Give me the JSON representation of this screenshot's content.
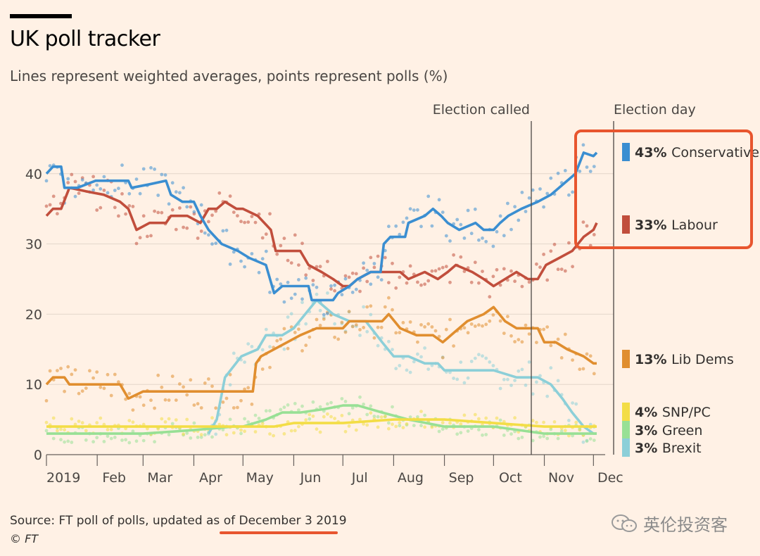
{
  "header": {
    "title": "UK poll tracker",
    "subtitle": "Lines represent weighted averages, points represent polls (%)"
  },
  "footer": {
    "source_prefix": "Source: FT poll of polls, updated as of ",
    "source_date": "December 3 2019",
    "copyright": "© FT",
    "watermark": "英伦投资客"
  },
  "colors": {
    "background": "#fff1e5",
    "conservative": "#3a8ed1",
    "labour": "#c14e3c",
    "libdems": "#e08e2f",
    "snp": "#f3dd46",
    "green": "#98e095",
    "brexit": "#8ccfd8",
    "highlight": "#e8552e"
  },
  "chart_data": {
    "type": "line",
    "title": "UK poll tracker",
    "x_type": "date",
    "x_range": [
      "2019-01-01",
      "2019-12-03"
    ],
    "ylim": [
      0,
      45
    ],
    "y_ticks": [
      0,
      10,
      20,
      30,
      40
    ],
    "x_ticks": [
      {
        "label": "2019",
        "date": "2019-01-01"
      },
      {
        "label": "Feb",
        "date": "2019-02-01"
      },
      {
        "label": "Mar",
        "date": "2019-03-01"
      },
      {
        "label": "Apr",
        "date": "2019-04-01"
      },
      {
        "label": "May",
        "date": "2019-05-01"
      },
      {
        "label": "Jun",
        "date": "2019-06-01"
      },
      {
        "label": "Jul",
        "date": "2019-07-01"
      },
      {
        "label": "Aug",
        "date": "2019-08-01"
      },
      {
        "label": "Sep",
        "date": "2019-09-01"
      },
      {
        "label": "Oct",
        "date": "2019-10-01"
      },
      {
        "label": "Nov",
        "date": "2019-11-01"
      },
      {
        "label": "Dec",
        "date": "2019-12-01"
      }
    ],
    "grid": true,
    "annotations": [
      {
        "label": "Election called",
        "date": "2019-10-29"
      },
      {
        "label": "Election day",
        "date": "2019-12-12"
      }
    ],
    "legend": [
      {
        "key": "conservative",
        "pct": "43%",
        "name": "Conservative"
      },
      {
        "key": "labour",
        "pct": "33%",
        "name": "Labour"
      },
      {
        "key": "libdems",
        "pct": "13%",
        "name": "Lib Dems"
      },
      {
        "key": "snp",
        "pct": "4%",
        "name": "SNP/PC"
      },
      {
        "key": "green",
        "pct": "3%",
        "name": "Green"
      },
      {
        "key": "brexit",
        "pct": "3%",
        "name": "Brexit"
      }
    ],
    "series": [
      {
        "name": "Conservative",
        "key": "conservative",
        "points": [
          [
            "2019-01-01",
            40
          ],
          [
            "2019-01-05",
            41
          ],
          [
            "2019-01-10",
            41
          ],
          [
            "2019-01-12",
            38
          ],
          [
            "2019-01-20",
            38
          ],
          [
            "2019-01-31",
            39
          ],
          [
            "2019-02-10",
            39
          ],
          [
            "2019-02-20",
            39
          ],
          [
            "2019-02-22",
            38
          ],
          [
            "2019-03-05",
            38.5
          ],
          [
            "2019-03-15",
            39
          ],
          [
            "2019-03-18",
            37
          ],
          [
            "2019-03-25",
            36
          ],
          [
            "2019-04-01",
            36
          ],
          [
            "2019-04-05",
            34
          ],
          [
            "2019-04-10",
            32
          ],
          [
            "2019-04-18",
            30
          ],
          [
            "2019-04-28",
            29
          ],
          [
            "2019-05-05",
            28
          ],
          [
            "2019-05-15",
            27
          ],
          [
            "2019-05-20",
            23
          ],
          [
            "2019-05-25",
            24
          ],
          [
            "2019-06-01",
            24
          ],
          [
            "2019-06-10",
            24
          ],
          [
            "2019-06-12",
            22
          ],
          [
            "2019-06-20",
            22
          ],
          [
            "2019-06-25",
            22
          ],
          [
            "2019-06-28",
            23
          ],
          [
            "2019-07-05",
            24
          ],
          [
            "2019-07-10",
            25
          ],
          [
            "2019-07-18",
            26
          ],
          [
            "2019-07-24",
            26
          ],
          [
            "2019-07-26",
            30
          ],
          [
            "2019-07-30",
            31
          ],
          [
            "2019-08-08",
            31
          ],
          [
            "2019-08-10",
            33
          ],
          [
            "2019-08-20",
            34
          ],
          [
            "2019-08-25",
            35
          ],
          [
            "2019-08-30",
            34
          ],
          [
            "2019-09-03",
            33
          ],
          [
            "2019-09-10",
            32
          ],
          [
            "2019-09-20",
            33
          ],
          [
            "2019-09-25",
            32
          ],
          [
            "2019-10-01",
            32
          ],
          [
            "2019-10-05",
            33
          ],
          [
            "2019-10-10",
            34
          ],
          [
            "2019-10-18",
            35
          ],
          [
            "2019-10-28",
            36
          ],
          [
            "2019-11-05",
            37
          ],
          [
            "2019-11-10",
            38
          ],
          [
            "2019-11-15",
            39
          ],
          [
            "2019-11-20",
            40
          ],
          [
            "2019-11-25",
            43
          ],
          [
            "2019-12-01",
            42.5
          ],
          [
            "2019-12-03",
            43
          ]
        ]
      },
      {
        "name": "Labour",
        "key": "labour",
        "points": [
          [
            "2019-01-01",
            34
          ],
          [
            "2019-01-05",
            35
          ],
          [
            "2019-01-10",
            35
          ],
          [
            "2019-01-15",
            38
          ],
          [
            "2019-01-25",
            37.5
          ],
          [
            "2019-02-05",
            37
          ],
          [
            "2019-02-15",
            36
          ],
          [
            "2019-02-20",
            35
          ],
          [
            "2019-02-25",
            32
          ],
          [
            "2019-03-05",
            33
          ],
          [
            "2019-03-15",
            33
          ],
          [
            "2019-03-18",
            34
          ],
          [
            "2019-03-28",
            34
          ],
          [
            "2019-04-05",
            33
          ],
          [
            "2019-04-10",
            35
          ],
          [
            "2019-04-15",
            35
          ],
          [
            "2019-04-20",
            36
          ],
          [
            "2019-04-27",
            35
          ],
          [
            "2019-05-01",
            35
          ],
          [
            "2019-05-10",
            34
          ],
          [
            "2019-05-18",
            32
          ],
          [
            "2019-05-21",
            29
          ],
          [
            "2019-05-30",
            29
          ],
          [
            "2019-06-05",
            29
          ],
          [
            "2019-06-10",
            27
          ],
          [
            "2019-06-18",
            26
          ],
          [
            "2019-06-25",
            25
          ],
          [
            "2019-07-01",
            24
          ],
          [
            "2019-07-05",
            24
          ],
          [
            "2019-07-10",
            25
          ],
          [
            "2019-07-18",
            26
          ],
          [
            "2019-07-25",
            26
          ],
          [
            "2019-07-30",
            26
          ],
          [
            "2019-08-05",
            26
          ],
          [
            "2019-08-10",
            25
          ],
          [
            "2019-08-20",
            26
          ],
          [
            "2019-08-28",
            25
          ],
          [
            "2019-09-03",
            26
          ],
          [
            "2019-09-08",
            27
          ],
          [
            "2019-09-18",
            26
          ],
          [
            "2019-09-25",
            25
          ],
          [
            "2019-10-01",
            24
          ],
          [
            "2019-10-08",
            25
          ],
          [
            "2019-10-15",
            26
          ],
          [
            "2019-10-22",
            25
          ],
          [
            "2019-10-28",
            25
          ],
          [
            "2019-11-02",
            27
          ],
          [
            "2019-11-10",
            28
          ],
          [
            "2019-11-18",
            29
          ],
          [
            "2019-11-25",
            31
          ],
          [
            "2019-12-01",
            32
          ],
          [
            "2019-12-03",
            33
          ]
        ]
      },
      {
        "name": "Lib Dems",
        "key": "libdems",
        "points": [
          [
            "2019-01-01",
            10
          ],
          [
            "2019-01-05",
            11
          ],
          [
            "2019-01-12",
            11
          ],
          [
            "2019-01-15",
            10
          ],
          [
            "2019-02-01",
            10
          ],
          [
            "2019-02-10",
            10
          ],
          [
            "2019-02-15",
            10
          ],
          [
            "2019-02-20",
            8
          ],
          [
            "2019-03-01",
            9
          ],
          [
            "2019-03-10",
            9
          ],
          [
            "2019-03-20",
            9
          ],
          [
            "2019-04-01",
            9
          ],
          [
            "2019-04-10",
            9
          ],
          [
            "2019-04-20",
            9
          ],
          [
            "2019-05-01",
            9
          ],
          [
            "2019-05-07",
            9
          ],
          [
            "2019-05-09",
            13
          ],
          [
            "2019-05-12",
            14
          ],
          [
            "2019-05-20",
            15
          ],
          [
            "2019-05-28",
            16
          ],
          [
            "2019-06-05",
            17
          ],
          [
            "2019-06-15",
            18
          ],
          [
            "2019-06-25",
            18
          ],
          [
            "2019-07-01",
            18
          ],
          [
            "2019-07-05",
            19
          ],
          [
            "2019-07-15",
            19
          ],
          [
            "2019-07-25",
            19
          ],
          [
            "2019-07-29",
            20
          ],
          [
            "2019-08-05",
            18
          ],
          [
            "2019-08-15",
            17
          ],
          [
            "2019-08-25",
            17
          ],
          [
            "2019-08-31",
            16
          ],
          [
            "2019-09-05",
            17
          ],
          [
            "2019-09-15",
            19
          ],
          [
            "2019-09-25",
            20
          ],
          [
            "2019-10-01",
            21
          ],
          [
            "2019-10-08",
            19
          ],
          [
            "2019-10-15",
            18
          ],
          [
            "2019-10-22",
            18
          ],
          [
            "2019-10-28",
            18
          ],
          [
            "2019-11-01",
            16
          ],
          [
            "2019-11-08",
            16
          ],
          [
            "2019-11-15",
            15
          ],
          [
            "2019-11-25",
            14
          ],
          [
            "2019-12-01",
            13
          ],
          [
            "2019-12-03",
            13
          ]
        ]
      },
      {
        "name": "SNP/PC",
        "key": "snp",
        "points": [
          [
            "2019-01-01",
            4
          ],
          [
            "2019-02-01",
            4
          ],
          [
            "2019-03-01",
            4
          ],
          [
            "2019-04-01",
            4
          ],
          [
            "2019-05-01",
            4
          ],
          [
            "2019-05-20",
            4
          ],
          [
            "2019-06-01",
            4.5
          ],
          [
            "2019-07-01",
            4.5
          ],
          [
            "2019-08-01",
            5
          ],
          [
            "2019-09-01",
            5
          ],
          [
            "2019-10-01",
            4.5
          ],
          [
            "2019-11-01",
            4
          ],
          [
            "2019-12-03",
            4
          ]
        ]
      },
      {
        "name": "Green",
        "key": "green",
        "points": [
          [
            "2019-01-01",
            3
          ],
          [
            "2019-02-01",
            3
          ],
          [
            "2019-03-01",
            3
          ],
          [
            "2019-04-01",
            3.5
          ],
          [
            "2019-04-25",
            4
          ],
          [
            "2019-05-01",
            4
          ],
          [
            "2019-05-15",
            5
          ],
          [
            "2019-05-25",
            6
          ],
          [
            "2019-06-05",
            6
          ],
          [
            "2019-06-20",
            6.5
          ],
          [
            "2019-07-01",
            7
          ],
          [
            "2019-07-10",
            7
          ],
          [
            "2019-07-25",
            6
          ],
          [
            "2019-08-10",
            5
          ],
          [
            "2019-09-01",
            4
          ],
          [
            "2019-10-01",
            4
          ],
          [
            "2019-11-01",
            3
          ],
          [
            "2019-12-03",
            3
          ]
        ]
      },
      {
        "name": "Brexit",
        "key": "brexit",
        "points": [
          [
            "2019-04-10",
            3
          ],
          [
            "2019-04-15",
            5
          ],
          [
            "2019-04-20",
            11
          ],
          [
            "2019-04-30",
            14
          ],
          [
            "2019-05-10",
            15
          ],
          [
            "2019-05-15",
            17
          ],
          [
            "2019-05-25",
            17
          ],
          [
            "2019-06-01",
            18
          ],
          [
            "2019-06-08",
            20
          ],
          [
            "2019-06-15",
            22
          ],
          [
            "2019-06-25",
            20
          ],
          [
            "2019-07-05",
            19
          ],
          [
            "2019-07-15",
            19
          ],
          [
            "2019-07-25",
            16
          ],
          [
            "2019-08-01",
            14
          ],
          [
            "2019-08-10",
            14
          ],
          [
            "2019-08-20",
            13
          ],
          [
            "2019-08-28",
            13
          ],
          [
            "2019-09-01",
            12
          ],
          [
            "2019-09-10",
            12
          ],
          [
            "2019-09-20",
            12
          ],
          [
            "2019-10-01",
            12
          ],
          [
            "2019-10-15",
            11
          ],
          [
            "2019-10-28",
            11
          ],
          [
            "2019-11-05",
            10
          ],
          [
            "2019-11-12",
            8
          ],
          [
            "2019-11-18",
            6
          ],
          [
            "2019-11-25",
            4
          ],
          [
            "2019-12-01",
            3
          ],
          [
            "2019-12-03",
            3
          ]
        ]
      }
    ]
  }
}
